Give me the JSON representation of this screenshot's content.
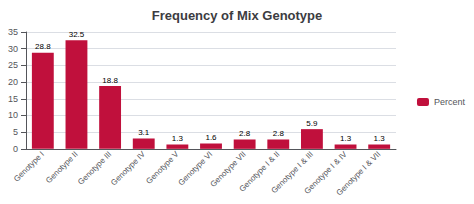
{
  "chart_data": {
    "type": "bar",
    "title": "Frequency of Mix Genotype",
    "categories": [
      "Genotype I",
      "Genotype II",
      "Genotype III",
      "Genotype IV",
      "Genotype V",
      "Genotype VI",
      "Genotype VII",
      "Genotype I & II",
      "Genotype I & III",
      "Genotype I & IV",
      "Genotype I & VII"
    ],
    "series": [
      {
        "name": "Percent",
        "color": "#c0103c",
        "values": [
          28.8,
          32.5,
          18.8,
          3.1,
          1.3,
          1.6,
          2.8,
          2.8,
          5.9,
          1.3,
          1.3
        ]
      }
    ],
    "ylim": [
      0,
      35
    ],
    "yticks": [
      0,
      5,
      10,
      15,
      20,
      25,
      30,
      35
    ],
    "grid": true,
    "legend": "right",
    "data_labels": true
  }
}
